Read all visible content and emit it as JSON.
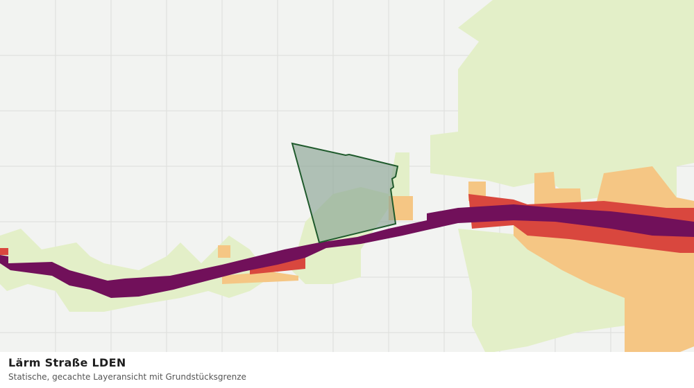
{
  "map": {
    "title": "Lärm Straße LDEN",
    "subtitle": "Statische, gecachte Layeransicht mit Grundstücksgrenze"
  }
}
